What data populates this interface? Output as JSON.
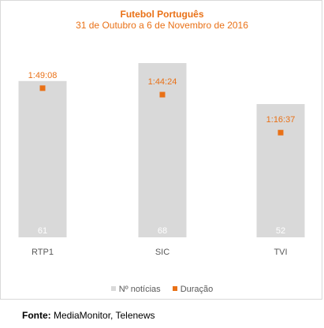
{
  "chart_data": {
    "type": "bar",
    "title": "Futebol Português",
    "subtitle": "31 de Outubro a 6 de Novembro de 2016",
    "categories": [
      "RTP1",
      "SIC",
      "TVI"
    ],
    "series": [
      {
        "name": "Nº notícias",
        "type": "bar",
        "values": [
          61,
          68,
          52
        ],
        "labels": [
          "61",
          "68",
          "52"
        ],
        "color": "#d9d9d9"
      },
      {
        "name": "Duração",
        "type": "marker",
        "values": [
          "1:49:08",
          "1:44:24",
          "1:16:37"
        ],
        "values_seconds": [
          6548,
          6264,
          4597
        ],
        "labels": [
          "1:49:08",
          "1:44:24",
          "1:16:37"
        ],
        "color": "#e97117"
      }
    ],
    "ylim": [
      0,
      80
    ],
    "legend_position": "bottom",
    "grid": false
  },
  "source": {
    "label": "Fonte:",
    "text": " MediaMonitor, Telenews"
  },
  "colors": {
    "accent": "#e97117",
    "bar": "#d9d9d9",
    "bar_label": "#ffffff",
    "axis_label": "#595959"
  }
}
